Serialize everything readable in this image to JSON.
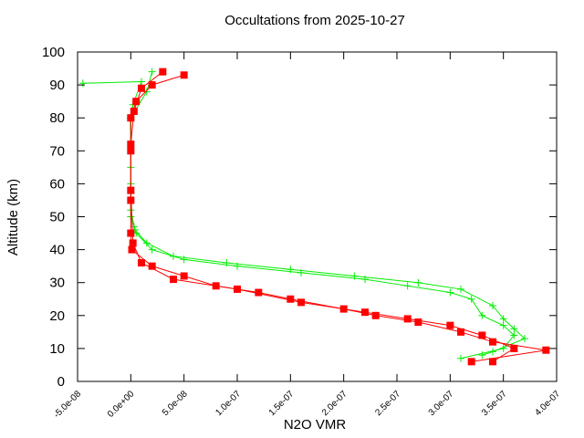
{
  "chart_data": {
    "type": "line",
    "title": "Occultations from 2025-10-27",
    "x_label": "N2O VMR",
    "y_label": "Altitude (km)",
    "xlim": [
      -5e-08,
      4e-07
    ],
    "ylim": [
      0,
      100
    ],
    "xticks": [
      {
        "value": -5e-08,
        "label": "-5.0e-08"
      },
      {
        "value": 0,
        "label": "0.0e+00"
      },
      {
        "value": 5e-08,
        "label": "5.0e-08"
      },
      {
        "value": 1e-07,
        "label": "1.0e-07"
      },
      {
        "value": 1.5e-07,
        "label": "1.5e-07"
      },
      {
        "value": 2e-07,
        "label": "2.0e-07"
      },
      {
        "value": 2.5e-07,
        "label": "2.5e-07"
      },
      {
        "value": 3e-07,
        "label": "3.0e-07"
      },
      {
        "value": 3.5e-07,
        "label": "3.5e-07"
      },
      {
        "value": 4e-07,
        "label": "4.0e-07"
      }
    ],
    "yticks": [
      0,
      10,
      20,
      30,
      40,
      50,
      60,
      70,
      80,
      90,
      100
    ],
    "series": [
      {
        "color": "#00ee00",
        "marker": "plus",
        "x": [
          -4.5e-08,
          1e-08,
          2e-09,
          -5e-10,
          0,
          0,
          0,
          3e-09,
          5e-09,
          2e-08,
          5e-08,
          1e-07,
          1.6e-07,
          2.2e-07,
          2.6e-07,
          3e-07,
          3.2e-07,
          3.3e-07,
          3.5e-07,
          3.6e-07,
          3.5e-07,
          3.1e-07
        ],
        "values": [
          90.5,
          91,
          84,
          80,
          70,
          60,
          50,
          47,
          45,
          40,
          37,
          35,
          33,
          31,
          29,
          27,
          25,
          20,
          17,
          14,
          10,
          7
        ]
      },
      {
        "color": "#00ee00",
        "marker": "plus",
        "x": [
          2e-08,
          1.5e-08,
          0,
          0,
          0,
          4e-09,
          1.5e-08,
          4e-08,
          9e-08,
          1.5e-07,
          2.1e-07,
          2.7e-07,
          3.1e-07,
          3.4e-07,
          3.5e-07,
          3.6e-07,
          3.7e-07,
          3.4e-07,
          3.3e-07
        ],
        "values": [
          94,
          88,
          80,
          65,
          52,
          46,
          42,
          38,
          36,
          34,
          32,
          30,
          28,
          23,
          19,
          16,
          13,
          9,
          8
        ]
      },
      {
        "color": "#ff0000",
        "marker": "square",
        "x": [
          5e-08,
          2e-08,
          5e-09,
          0,
          0,
          0,
          0,
          1e-09,
          2e-08,
          5e-08,
          8e-08,
          1.2e-07,
          1.5e-07,
          2e-07,
          2.3e-07,
          2.7e-07,
          3.1e-07,
          3.4e-07,
          3.9e-07,
          3.2e-07
        ],
        "values": [
          93,
          90,
          85,
          80,
          70,
          55,
          45,
          40,
          35,
          32,
          29,
          27,
          25,
          22,
          20,
          18,
          15,
          12,
          9.5,
          6
        ]
      },
      {
        "color": "#ff0000",
        "marker": "square",
        "x": [
          3e-08,
          1e-08,
          3e-09,
          0,
          0,
          2e-09,
          1e-08,
          4e-08,
          1e-07,
          1.6e-07,
          2.2e-07,
          2.6e-07,
          3e-07,
          3.3e-07,
          3.6e-07,
          3.4e-07
        ],
        "values": [
          94,
          89,
          82,
          72,
          58,
          42,
          36,
          31,
          28,
          24,
          21,
          19,
          17,
          14,
          10,
          6
        ]
      }
    ]
  }
}
